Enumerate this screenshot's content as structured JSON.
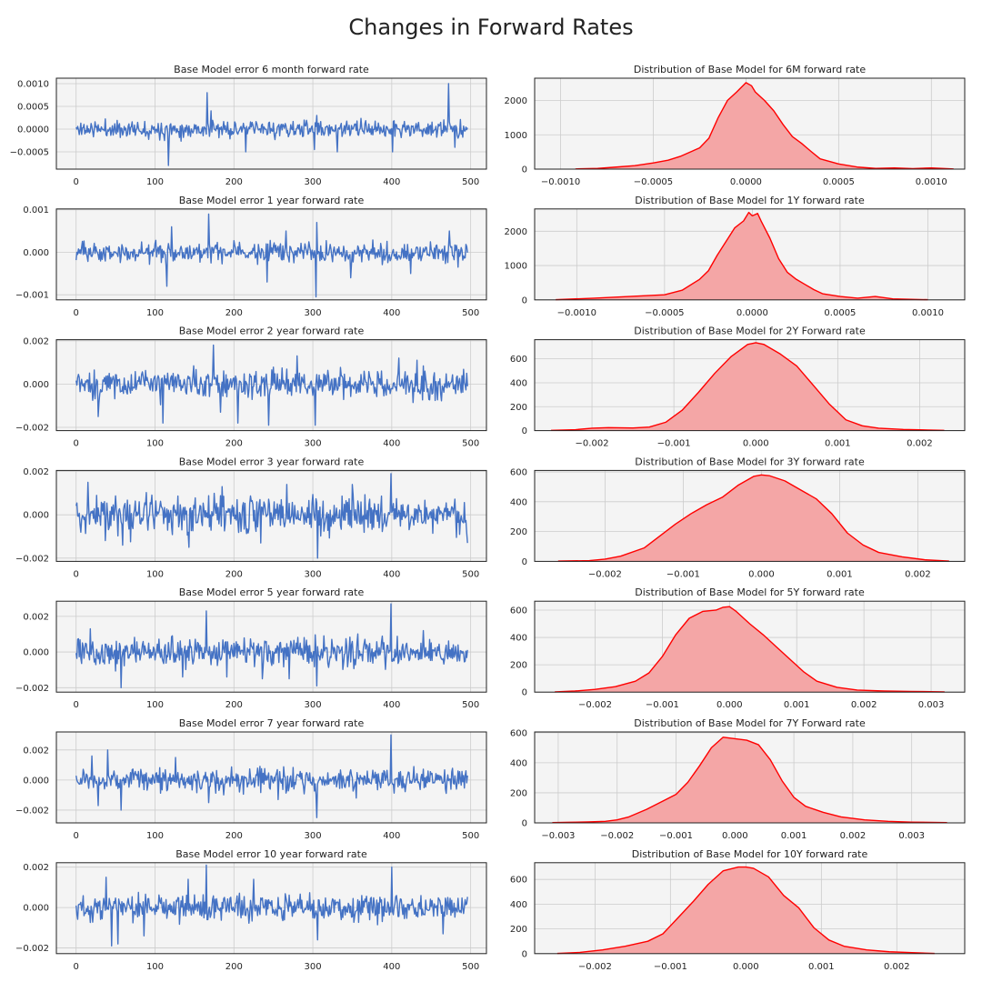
{
  "figure": {
    "title": "Changes in Forward Rates"
  },
  "colors": {
    "line": "#4472c4",
    "kde_line": "#ff0000",
    "kde_fill": "#f4a6a6",
    "axes_bg": "#f4f4f4",
    "grid": "#cccccc"
  },
  "chart_data": [
    {
      "type": "line",
      "panel": "left",
      "row": 0,
      "title": "Base Model error 6 month forward rate",
      "xlim": [
        -25,
        520
      ],
      "xticks": [
        0,
        100,
        200,
        300,
        400,
        500
      ],
      "ylim": [
        -0.00088,
        0.00112
      ],
      "yticks": [
        -0.0005,
        0,
        0.0005,
        0.001
      ],
      "ytick_labels": [
        "−0.0005",
        "0.0000",
        "0.0005",
        "0.0010"
      ],
      "n": 497,
      "amplitude": 0.00013,
      "seed": 11,
      "spikes": [
        [
          117,
          -0.0008
        ],
        [
          166,
          0.0008
        ],
        [
          171,
          0.0004
        ],
        [
          215,
          -0.0005
        ],
        [
          302,
          -0.00045
        ],
        [
          331,
          -0.0005
        ],
        [
          401,
          -0.0005
        ],
        [
          472,
          0.001
        ],
        [
          480,
          -0.0004
        ],
        [
          305,
          0.0003
        ]
      ]
    },
    {
      "type": "area",
      "panel": "right",
      "row": 0,
      "title": "Distribution of Base Model for 6M forward rate",
      "xlim": [
        -0.00114,
        0.00118
      ],
      "xticks": [
        -0.001,
        -0.0005,
        0,
        0.0005,
        0.001
      ],
      "xtick_labels": [
        "−0.0010",
        "−0.0005",
        "0.0000",
        "0.0005",
        "0.0010"
      ],
      "ylim": [
        0,
        2650
      ],
      "yticks": [
        0,
        1000,
        2000
      ],
      "x": [
        -0.00092,
        -0.0008,
        -0.0007,
        -0.0006,
        -0.0005,
        -0.00042,
        -0.00035,
        -0.0003,
        -0.00025,
        -0.0002,
        -0.00015,
        -0.0001,
        -5e-05,
        0,
        3e-05,
        5e-05,
        0.0001,
        0.00015,
        0.0002,
        0.00025,
        0.0003,
        0.00035,
        0.0004,
        0.0005,
        0.0006,
        0.0007,
        0.0008,
        0.0009,
        0.001,
        0.00112
      ],
      "y": [
        5,
        20,
        60,
        100,
        180,
        260,
        380,
        500,
        620,
        900,
        1500,
        2000,
        2250,
        2520,
        2430,
        2250,
        2000,
        1700,
        1300,
        950,
        750,
        520,
        300,
        150,
        60,
        20,
        35,
        15,
        35,
        5
      ]
    },
    {
      "type": "line",
      "panel": "left",
      "row": 1,
      "title": "Base Model error 1 year forward rate",
      "xlim": [
        -25,
        520
      ],
      "xticks": [
        0,
        100,
        200,
        300,
        400,
        500
      ],
      "ylim": [
        -0.00112,
        0.00102
      ],
      "yticks": [
        -0.001,
        0,
        0.001
      ],
      "ytick_labels": [
        "−0.001",
        "0.000",
        "0.001"
      ],
      "n": 497,
      "amplitude": 0.00017,
      "seed": 23,
      "spikes": [
        [
          115,
          -0.0008
        ],
        [
          168,
          0.0009
        ],
        [
          121,
          0.0006
        ],
        [
          242,
          -0.0007
        ],
        [
          304,
          -0.00105
        ],
        [
          305,
          0.0007
        ],
        [
          348,
          -0.0006
        ],
        [
          424,
          -0.0005
        ],
        [
          473,
          0.0005
        ],
        [
          266,
          0.0005
        ]
      ]
    },
    {
      "type": "area",
      "panel": "right",
      "row": 1,
      "title": "Distribution of Base Model for 1Y forward rate",
      "xlim": [
        -0.00124,
        0.00121
      ],
      "xticks": [
        -0.001,
        -0.0005,
        0,
        0.0005,
        0.001
      ],
      "xtick_labels": [
        "−0.0010",
        "−0.0005",
        "0.0000",
        "0.0005",
        "0.0010"
      ],
      "ylim": [
        0,
        2650
      ],
      "yticks": [
        0,
        1000,
        2000
      ],
      "x": [
        -0.00112,
        -0.0009,
        -0.0007,
        -0.0005,
        -0.0004,
        -0.0003,
        -0.00025,
        -0.0002,
        -0.00015,
        -0.0001,
        -5e-05,
        -2e-05,
        0,
        3e-05,
        5e-05,
        0.0001,
        0.00015,
        0.0002,
        0.00025,
        0.0003,
        0.00035,
        0.0004,
        0.0005,
        0.0006,
        0.0007,
        0.0008,
        0.001
      ],
      "y": [
        5,
        50,
        100,
        150,
        280,
        600,
        850,
        1300,
        1700,
        2100,
        2300,
        2550,
        2450,
        2520,
        2300,
        1800,
        1200,
        800,
        600,
        450,
        300,
        180,
        100,
        50,
        100,
        30,
        5
      ]
    },
    {
      "type": "line",
      "panel": "left",
      "row": 2,
      "title": "Base Model error 2 year forward rate",
      "xlim": [
        -25,
        520
      ],
      "xticks": [
        0,
        100,
        200,
        300,
        400,
        500
      ],
      "ylim": [
        -0.00215,
        0.00205
      ],
      "yticks": [
        -0.002,
        0,
        0.002
      ],
      "ytick_labels": [
        "−0.002",
        "0.000",
        "0.002"
      ],
      "n": 497,
      "amplitude": 0.00048,
      "seed": 37,
      "spikes": [
        [
          174,
          0.0018
        ],
        [
          205,
          -0.0018
        ],
        [
          244,
          -0.0019
        ],
        [
          303,
          -0.0019
        ],
        [
          28,
          -0.0015
        ],
        [
          110,
          -0.0018
        ],
        [
          183,
          -0.0013
        ],
        [
          409,
          0.0012
        ],
        [
          432,
          0.0011
        ],
        [
          280,
          0.0013
        ]
      ]
    },
    {
      "type": "area",
      "panel": "right",
      "row": 2,
      "title": "Distribution of Base Model for 2Y Forward rate",
      "xlim": [
        -0.0027,
        0.00255
      ],
      "xticks": [
        -0.002,
        -0.001,
        0,
        0.001,
        0.002
      ],
      "xtick_labels": [
        "−0.002",
        "−0.001",
        "0.000",
        "0.001",
        "0.002"
      ],
      "ylim": [
        0,
        760
      ],
      "yticks": [
        0,
        200,
        400,
        600
      ],
      "x": [
        -0.0025,
        -0.0022,
        -0.002,
        -0.0018,
        -0.0015,
        -0.0013,
        -0.0011,
        -0.0009,
        -0.0007,
        -0.0005,
        -0.0003,
        -0.0001,
        0,
        0.0001,
        0.0003,
        0.0005,
        0.0007,
        0.0009,
        0.0011,
        0.0013,
        0.0015,
        0.0018,
        0.0021,
        0.0023
      ],
      "y": [
        2,
        8,
        20,
        25,
        22,
        30,
        70,
        170,
        320,
        480,
        620,
        720,
        735,
        720,
        640,
        540,
        380,
        220,
        90,
        40,
        20,
        10,
        5,
        2
      ]
    },
    {
      "type": "line",
      "panel": "left",
      "row": 3,
      "title": "Base Model error 3 year forward rate",
      "xlim": [
        -25,
        520
      ],
      "xticks": [
        0,
        100,
        200,
        300,
        400,
        500
      ],
      "ylim": [
        -0.00215,
        0.00205
      ],
      "yticks": [
        -0.002,
        0,
        0.002
      ],
      "ytick_labels": [
        "−0.002",
        "0.000",
        "0.002"
      ],
      "n": 497,
      "amplitude": 0.00065,
      "seed": 41,
      "spikes": [
        [
          399,
          0.0019
        ],
        [
          306,
          -0.002
        ],
        [
          15,
          0.0015
        ],
        [
          59,
          -0.0014
        ],
        [
          143,
          -0.0015
        ],
        [
          234,
          -0.0013
        ],
        [
          267,
          0.0014
        ],
        [
          496,
          -0.0013
        ],
        [
          185,
          0.0013
        ],
        [
          350,
          0.0014
        ]
      ]
    },
    {
      "type": "area",
      "panel": "right",
      "row": 3,
      "title": "Distribution of Base Model for 3Y forward rate",
      "xlim": [
        -0.0029,
        0.0026
      ],
      "xticks": [
        -0.002,
        -0.001,
        0,
        0.001,
        0.002
      ],
      "xtick_labels": [
        "−0.002",
        "−0.001",
        "0.000",
        "0.001",
        "0.002"
      ],
      "ylim": [
        0,
        610
      ],
      "yticks": [
        0,
        200,
        400,
        600
      ],
      "x": [
        -0.0026,
        -0.0022,
        -0.002,
        -0.0018,
        -0.0015,
        -0.0013,
        -0.0011,
        -0.0009,
        -0.0007,
        -0.0005,
        -0.0003,
        -0.0001,
        0,
        0.0001,
        0.0003,
        0.0005,
        0.0007,
        0.0009,
        0.0011,
        0.0013,
        0.0015,
        0.0018,
        0.0021,
        0.0024
      ],
      "y": [
        2,
        5,
        15,
        35,
        90,
        170,
        250,
        320,
        380,
        430,
        510,
        570,
        580,
        575,
        540,
        480,
        420,
        320,
        190,
        110,
        60,
        30,
        10,
        2
      ]
    },
    {
      "type": "line",
      "panel": "left",
      "row": 4,
      "title": "Base Model error 5 year forward rate",
      "xlim": [
        -25,
        520
      ],
      "xticks": [
        0,
        100,
        200,
        300,
        400,
        500
      ],
      "ylim": [
        -0.00225,
        0.00285
      ],
      "yticks": [
        -0.002,
        0,
        0.002
      ],
      "ytick_labels": [
        "−0.002",
        "0.000",
        "0.002"
      ],
      "n": 497,
      "amplitude": 0.00055,
      "seed": 53,
      "spikes": [
        [
          399,
          0.0027
        ],
        [
          165,
          0.0023
        ],
        [
          57,
          -0.002
        ],
        [
          305,
          -0.0019
        ],
        [
          135,
          -0.0014
        ],
        [
          236,
          -0.0015
        ],
        [
          270,
          -0.0015
        ],
        [
          18,
          0.0013
        ],
        [
          440,
          0.0012
        ],
        [
          191,
          -0.0014
        ]
      ]
    },
    {
      "type": "area",
      "panel": "right",
      "row": 4,
      "title": "Distribution of Base Model for 5Y forward rate",
      "xlim": [
        -0.0029,
        0.0035
      ],
      "xticks": [
        -0.002,
        -0.001,
        0,
        0.001,
        0.002,
        0.003
      ],
      "xtick_labels": [
        "−0.002",
        "−0.001",
        "0.000",
        "0.001",
        "0.002",
        "0.003"
      ],
      "ylim": [
        0,
        665
      ],
      "yticks": [
        0,
        200,
        400,
        600
      ],
      "x": [
        -0.0026,
        -0.0023,
        -0.002,
        -0.0017,
        -0.0014,
        -0.0012,
        -0.001,
        -0.0008,
        -0.0006,
        -0.0004,
        -0.0002,
        -0.0001,
        0,
        0.0001,
        0.0003,
        0.0005,
        0.0007,
        0.0009,
        0.0011,
        0.0013,
        0.0016,
        0.0019,
        0.0023,
        0.0027,
        0.0032
      ],
      "y": [
        2,
        8,
        20,
        40,
        80,
        140,
        260,
        420,
        540,
        590,
        600,
        620,
        625,
        590,
        500,
        420,
        330,
        240,
        150,
        80,
        35,
        15,
        8,
        5,
        2
      ]
    },
    {
      "type": "line",
      "panel": "left",
      "row": 5,
      "title": "Base Model error 7 year forward rate",
      "xlim": [
        -25,
        520
      ],
      "xticks": [
        0,
        100,
        200,
        300,
        400,
        500
      ],
      "ylim": [
        -0.00285,
        0.0032
      ],
      "yticks": [
        -0.002,
        0,
        0.002
      ],
      "ytick_labels": [
        "−0.002",
        "0.000",
        "0.002"
      ],
      "n": 497,
      "amplitude": 0.00055,
      "seed": 67,
      "spikes": [
        [
          399,
          0.003
        ],
        [
          305,
          -0.0025
        ],
        [
          57,
          -0.002
        ],
        [
          40,
          0.002
        ],
        [
          28,
          -0.0017
        ],
        [
          168,
          -0.0015
        ],
        [
          256,
          -0.0013
        ],
        [
          126,
          0.0015
        ],
        [
          355,
          -0.0012
        ],
        [
          20,
          0.0016
        ]
      ]
    },
    {
      "type": "area",
      "panel": "right",
      "row": 5,
      "title": "Distribution of Base Model for 7Y Forward rate",
      "xlim": [
        -0.0034,
        0.0039
      ],
      "xticks": [
        -0.003,
        -0.002,
        -0.001,
        0,
        0.001,
        0.002,
        0.003
      ],
      "xtick_labels": [
        "−0.003",
        "−0.002",
        "−0.001",
        "0.000",
        "0.001",
        "0.002",
        "0.003"
      ],
      "ylim": [
        0,
        605
      ],
      "yticks": [
        0,
        200,
        400,
        600
      ],
      "x": [
        -0.0031,
        -0.0028,
        -0.0025,
        -0.0022,
        -0.002,
        -0.0018,
        -0.0015,
        -0.0012,
        -0.001,
        -0.0008,
        -0.0006,
        -0.0004,
        -0.0002,
        0,
        0.0002,
        0.0004,
        0.0006,
        0.0008,
        0.001,
        0.0012,
        0.0015,
        0.0018,
        0.0022,
        0.0026,
        0.003,
        0.0036
      ],
      "y": [
        2,
        4,
        6,
        10,
        20,
        40,
        90,
        150,
        190,
        270,
        380,
        500,
        570,
        560,
        550,
        520,
        420,
        280,
        170,
        110,
        70,
        40,
        20,
        10,
        5,
        2
      ]
    },
    {
      "type": "line",
      "panel": "left",
      "row": 6,
      "title": "Base Model error 10 year forward rate",
      "xlim": [
        -25,
        520
      ],
      "xticks": [
        0,
        100,
        200,
        300,
        400,
        500
      ],
      "ylim": [
        -0.00228,
        0.00222
      ],
      "yticks": [
        -0.002,
        0,
        0.002
      ],
      "ytick_labels": [
        "−0.002",
        "0.000",
        "0.002"
      ],
      "n": 497,
      "amplitude": 0.00048,
      "seed": 79,
      "spikes": [
        [
          165,
          0.0021
        ],
        [
          400,
          0.002
        ],
        [
          45,
          -0.0019
        ],
        [
          53,
          -0.0018
        ],
        [
          306,
          -0.0016
        ],
        [
          142,
          0.0014
        ],
        [
          225,
          0.0014
        ],
        [
          38,
          0.0015
        ],
        [
          86,
          -0.0014
        ],
        [
          465,
          -0.0013
        ]
      ]
    },
    {
      "type": "area",
      "panel": "right",
      "row": 6,
      "title": "Distribution of Base Model for 10Y forward rate",
      "xlim": [
        -0.0028,
        0.0029
      ],
      "xticks": [
        -0.002,
        -0.001,
        0,
        0.001,
        0.002
      ],
      "xtick_labels": [
        "−0.002",
        "−0.001",
        "0.000",
        "0.001",
        "0.002"
      ],
      "ylim": [
        0,
        735
      ],
      "yticks": [
        0,
        200,
        400,
        600
      ],
      "x": [
        -0.0025,
        -0.0022,
        -0.0019,
        -0.0016,
        -0.0013,
        -0.0011,
        -0.0009,
        -0.0007,
        -0.0005,
        -0.0003,
        -0.0001,
        0,
        0.0001,
        0.0003,
        0.0005,
        0.0007,
        0.0009,
        0.0011,
        0.0013,
        0.0016,
        0.0019,
        0.0022,
        0.0025
      ],
      "y": [
        2,
        10,
        30,
        60,
        100,
        160,
        290,
        420,
        560,
        670,
        700,
        700,
        690,
        620,
        470,
        370,
        210,
        110,
        60,
        30,
        15,
        8,
        2
      ]
    }
  ]
}
